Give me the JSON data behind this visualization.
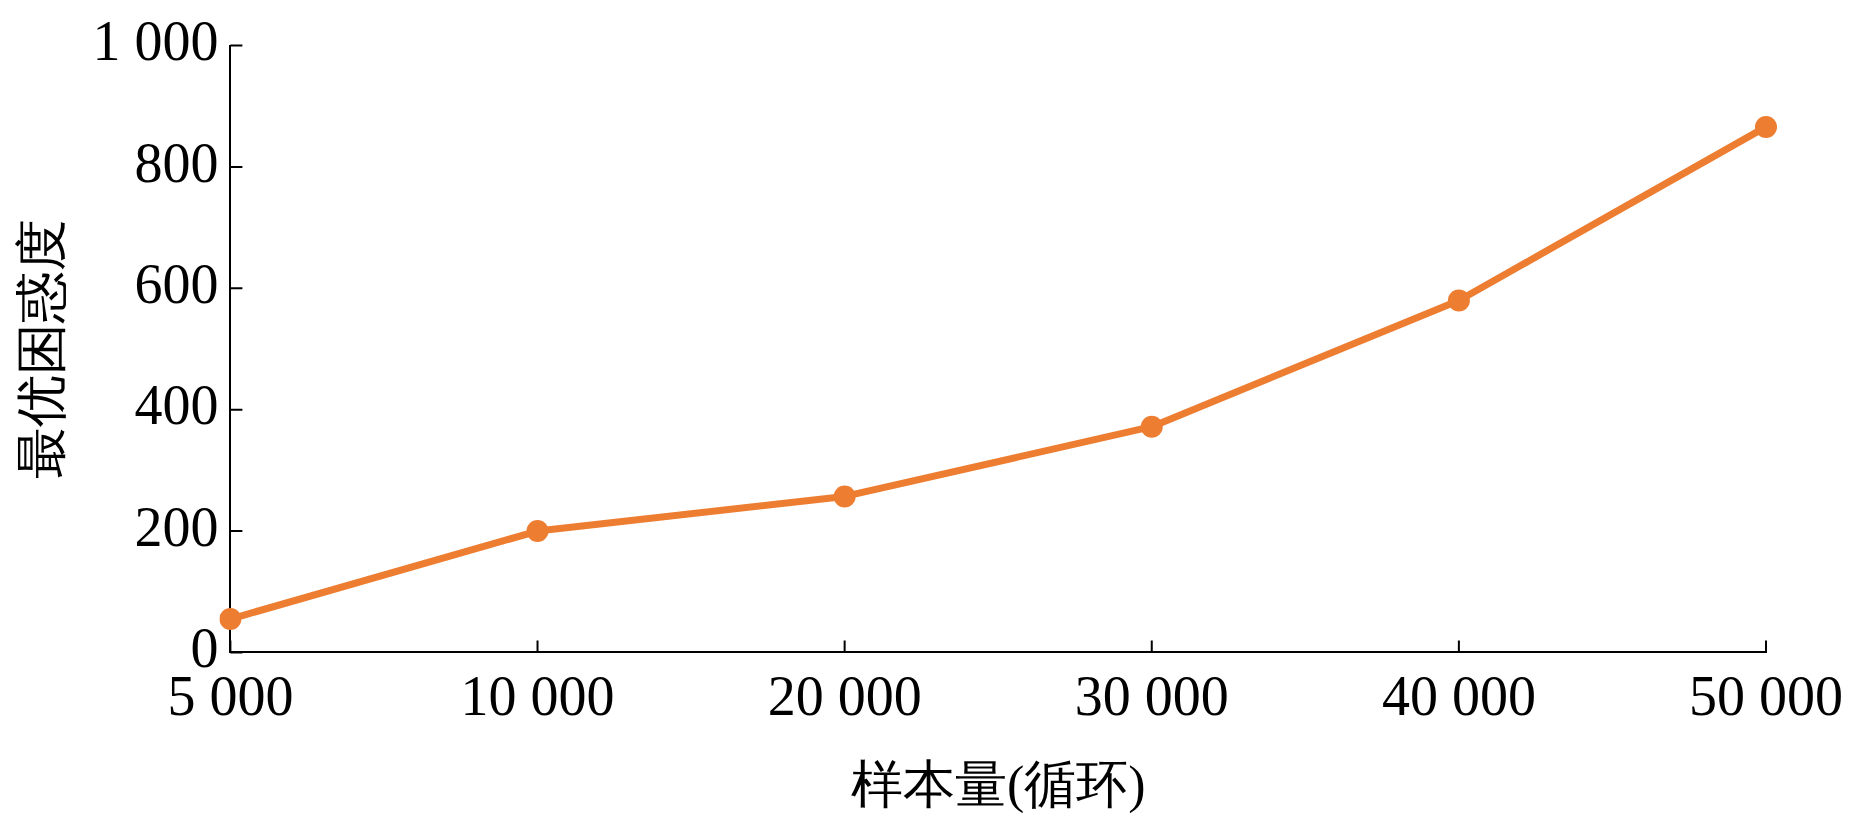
{
  "chart_data": {
    "type": "line",
    "xlabel": "样本量(循环)",
    "ylabel": "最优困惑度",
    "categories": [
      "5 000",
      "10 000",
      "20 000",
      "30 000",
      "40 000",
      "50 000"
    ],
    "series": [
      {
        "color": "#ed7d31",
        "values": [
          55,
          200,
          257,
          372,
          580,
          866
        ]
      }
    ],
    "ylim": [
      0,
      1000
    ],
    "yticks": [
      0,
      200,
      400,
      600,
      800,
      {
        "value": 1000,
        "label": "1 000"
      }
    ],
    "marker": "circle",
    "line_style": "solid",
    "grid": false,
    "legend": false
  }
}
